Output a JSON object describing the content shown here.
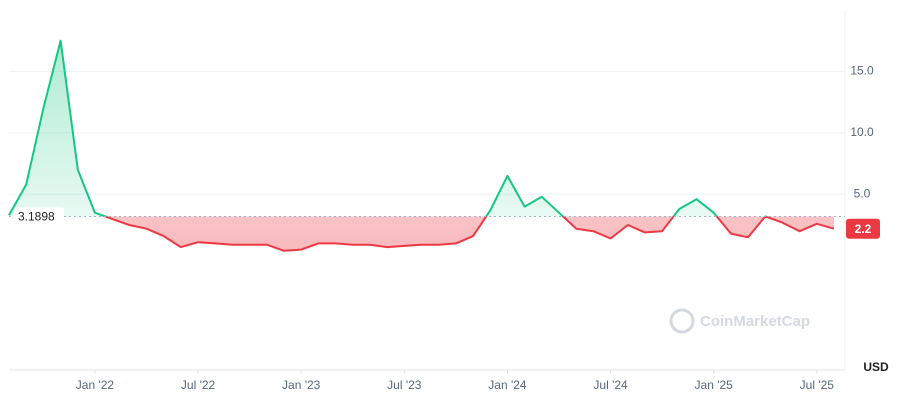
{
  "chart_data": {
    "type": "line",
    "x": [
      "2021-08",
      "2021-09",
      "2021-10",
      "2021-11",
      "2021-12",
      "2022-01",
      "2022-02",
      "2022-03",
      "2022-04",
      "2022-05",
      "2022-06",
      "2022-07",
      "2022-08",
      "2022-09",
      "2022-10",
      "2022-11",
      "2022-12",
      "2023-01",
      "2023-02",
      "2023-03",
      "2023-04",
      "2023-05",
      "2023-06",
      "2023-07",
      "2023-08",
      "2023-09",
      "2023-10",
      "2023-11",
      "2023-12",
      "2024-01",
      "2024-02",
      "2024-03",
      "2024-04",
      "2024-05",
      "2024-06",
      "2024-07",
      "2024-08",
      "2024-09",
      "2024-10",
      "2024-11",
      "2024-12",
      "2025-01",
      "2025-02",
      "2025-03",
      "2025-04",
      "2025-05",
      "2025-06",
      "2025-07",
      "2025-08"
    ],
    "values": [
      3.3,
      5.8,
      12,
      17.5,
      7,
      3.5,
      3.0,
      2.5,
      2.2,
      1.6,
      0.7,
      1.1,
      1.0,
      0.9,
      0.9,
      0.9,
      0.4,
      0.5,
      1.0,
      1.0,
      0.9,
      0.9,
      0.7,
      0.8,
      0.9,
      0.9,
      1.0,
      1.6,
      3.7,
      6.5,
      4.0,
      4.8,
      3.5,
      2.2,
      2.0,
      1.4,
      2.5,
      1.9,
      2.0,
      3.8,
      4.6,
      3.5,
      1.8,
      1.5,
      3.2,
      2.7,
      2.0,
      2.6,
      2.2
    ],
    "up_color": "#16c784",
    "down_color": "#ea3943",
    "baseline": 3.1898,
    "last_price": 2.2,
    "xlim": [
      "2021-08",
      "2025-08"
    ],
    "xticks": [
      {
        "value": "2022-01",
        "label": "Jan '22"
      },
      {
        "value": "2022-07",
        "label": "Jul '22"
      },
      {
        "value": "2023-01",
        "label": "Jan '23"
      },
      {
        "value": "2023-07",
        "label": "Jul '23"
      },
      {
        "value": "2024-01",
        "label": "Jan '24"
      },
      {
        "value": "2024-07",
        "label": "Jul '24"
      },
      {
        "value": "2025-01",
        "label": "Jan '25"
      },
      {
        "value": "2025-07",
        "label": "Jul '25"
      }
    ],
    "ylim": [
      -9.3,
      20
    ],
    "yticks": [
      {
        "value": 5,
        "label": "5.0"
      },
      {
        "value": 10,
        "label": "10.0"
      },
      {
        "value": 15,
        "label": "15.0"
      }
    ],
    "grid": true,
    "currency": "USD",
    "watermark": "CoinMarketCap"
  }
}
